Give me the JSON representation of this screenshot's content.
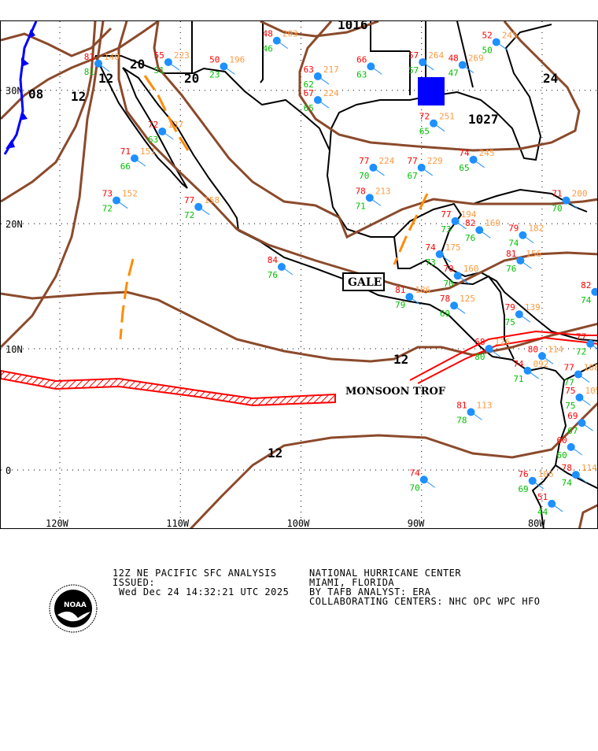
{
  "map": {
    "grid_labels": {
      "lat": [
        {
          "value": 30,
          "text": "30N"
        },
        {
          "value": 20,
          "text": "20N"
        },
        {
          "value": 10,
          "text": "10N"
        },
        {
          "value": 0,
          "text": "0"
        }
      ],
      "lon": [
        {
          "value": -120,
          "text": "120W"
        },
        {
          "value": -110,
          "text": "110W"
        },
        {
          "value": -100,
          "text": "100W"
        },
        {
          "value": -90,
          "text": "90W"
        },
        {
          "value": -80,
          "text": "80W"
        }
      ]
    },
    "isobar_labels": [
      "1016",
      "20",
      "20",
      "12",
      "12",
      "08",
      "24",
      "1027",
      "12",
      "12"
    ],
    "feature_labels": {
      "gale": "GALE",
      "monsoon": "MONSOON TROF"
    },
    "colors": {
      "isobar": "#8b4a2b",
      "cold_front": "#0000ff",
      "trough": "#ff8c00",
      "monsoon_trough": "#ff0000",
      "station": "#1e90ff",
      "temperature": "#ff0000",
      "dewpoint": "#00c000",
      "pressure": "#ff9a40",
      "coast": "#000000",
      "high": "#0000ff"
    },
    "stations": [
      {
        "lon": -111.0,
        "lat": 32.0,
        "t": "55",
        "td": "51",
        "p": "223"
      },
      {
        "lon": -106.4,
        "lat": 31.7,
        "t": "50",
        "td": "23",
        "p": "196"
      },
      {
        "lon": -102.0,
        "lat": 33.5,
        "t": "48",
        "td": "46",
        "p": "203"
      },
      {
        "lon": -98.6,
        "lat": 31.0,
        "t": "63",
        "td": "62",
        "p": "217"
      },
      {
        "lon": -98.6,
        "lat": 29.3,
        "t": "67",
        "td": "65",
        "p": "224"
      },
      {
        "lon": -115.3,
        "lat": 21.8,
        "t": "73",
        "td": "72",
        "p": "152"
      },
      {
        "lon": -113.8,
        "lat": 25.0,
        "t": "71",
        "td": "66",
        "p": "151"
      },
      {
        "lon": -111.5,
        "lat": 27.0,
        "t": "72",
        "td": "63",
        "p": "137"
      },
      {
        "lon": -108.5,
        "lat": 21.3,
        "t": "77",
        "td": "72",
        "p": "158"
      },
      {
        "lon": -116.8,
        "lat": 31.9,
        "t": "81",
        "td": "81",
        "p": "140"
      },
      {
        "lon": -101.6,
        "lat": 16.6,
        "t": "84",
        "td": "76",
        "p": ""
      },
      {
        "lon": -83.8,
        "lat": 33.4,
        "t": "52",
        "td": "50",
        "p": "245"
      },
      {
        "lon": -89.9,
        "lat": 32.0,
        "t": "57",
        "td": "57",
        "p": "264"
      },
      {
        "lon": -86.6,
        "lat": 31.8,
        "t": "48",
        "td": "47",
        "p": "269"
      },
      {
        "lon": -94.2,
        "lat": 31.7,
        "t": "66",
        "td": "63",
        "p": ""
      },
      {
        "lon": -94.3,
        "lat": 22.0,
        "t": "78",
        "td": "71",
        "p": "213"
      },
      {
        "lon": -94.0,
        "lat": 24.3,
        "t": "77",
        "td": "70",
        "p": "224"
      },
      {
        "lon": -90.0,
        "lat": 24.3,
        "t": "77",
        "td": "67",
        "p": "229"
      },
      {
        "lon": -89.0,
        "lat": 27.6,
        "t": "72",
        "td": "65",
        "p": "251"
      },
      {
        "lon": -85.7,
        "lat": 24.9,
        "t": "74",
        "td": "65",
        "p": "245"
      },
      {
        "lon": -87.2,
        "lat": 20.2,
        "t": "77",
        "td": "73",
        "p": "194"
      },
      {
        "lon": -85.2,
        "lat": 19.5,
        "t": "82",
        "td": "76",
        "p": "169"
      },
      {
        "lon": -81.6,
        "lat": 19.1,
        "t": "79",
        "td": "74",
        "p": "182"
      },
      {
        "lon": -81.8,
        "lat": 17.1,
        "t": "81",
        "td": "76",
        "p": "156"
      },
      {
        "lon": -78.0,
        "lat": 21.8,
        "t": "71",
        "td": "70",
        "p": "200"
      },
      {
        "lon": -88.5,
        "lat": 17.6,
        "t": "74",
        "td": "73",
        "p": "175"
      },
      {
        "lon": -87.0,
        "lat": 15.9,
        "t": "70",
        "td": "70",
        "p": "160"
      },
      {
        "lon": -91.0,
        "lat": 14.2,
        "t": "81",
        "td": "79",
        "p": "186"
      },
      {
        "lon": -87.3,
        "lat": 13.5,
        "t": "78",
        "td": "69",
        "p": "125"
      },
      {
        "lon": -81.9,
        "lat": 12.8,
        "t": "79",
        "td": "75",
        "p": "139"
      },
      {
        "lon": -84.4,
        "lat": 10.0,
        "t": "68",
        "td": "80",
        "p": "126"
      },
      {
        "lon": -80.0,
        "lat": 9.4,
        "t": "80",
        "td": "",
        "p": "114"
      },
      {
        "lon": -81.2,
        "lat": 8.2,
        "t": "74",
        "td": "71",
        "p": "092"
      },
      {
        "lon": -77.0,
        "lat": 7.9,
        "t": "77",
        "td": "77",
        "p": "108"
      },
      {
        "lon": -76.9,
        "lat": 6.0,
        "t": "75",
        "td": "75",
        "p": "105"
      },
      {
        "lon": -76.7,
        "lat": 3.9,
        "t": "69",
        "td": "67",
        "p": ""
      },
      {
        "lon": -77.6,
        "lat": 1.9,
        "t": "60",
        "td": "60",
        "p": ""
      },
      {
        "lon": -85.9,
        "lat": 4.8,
        "t": "81",
        "td": "78",
        "p": "113"
      },
      {
        "lon": -89.8,
        "lat": -0.8,
        "t": "74",
        "td": "70",
        "p": ""
      },
      {
        "lon": -80.8,
        "lat": -0.9,
        "t": "76",
        "td": "69",
        "p": "106"
      },
      {
        "lon": -77.2,
        "lat": -0.4,
        "t": "78",
        "td": "74",
        "p": "114"
      },
      {
        "lon": -79.2,
        "lat": -2.8,
        "t": "51",
        "td": "44",
        "p": ""
      },
      {
        "lon": -75.6,
        "lat": 14.6,
        "t": "82",
        "td": "74",
        "p": ""
      },
      {
        "lon": -76.0,
        "lat": 10.4,
        "t": "77",
        "td": "72",
        "p": ""
      }
    ]
  },
  "caption": {
    "title": "12Z NE PACIFIC SFC ANALYSIS",
    "issued_label": "ISSUED:",
    "issued_time": "Wed Dec 24 14:32:21 UTC 2025",
    "center": "NATIONAL HURRICANE CENTER",
    "location": "MIAMI, FLORIDA",
    "analyst": "BY TAFB ANALYST: ERA",
    "collab": "COLLABORATING CENTERS: NHC OPC WPC HFO",
    "logo_text": "NOAA"
  }
}
